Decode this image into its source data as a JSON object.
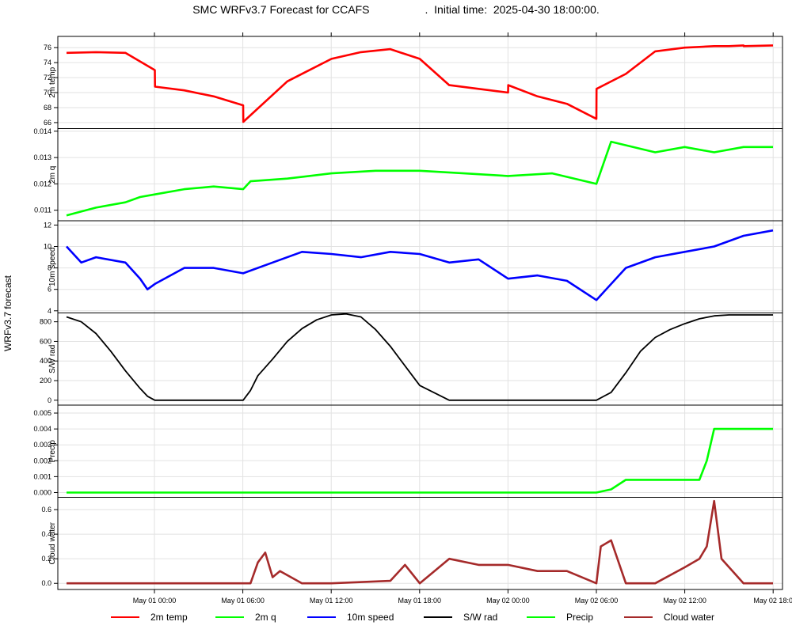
{
  "chart_data": {
    "type": "line",
    "title": "SMC WRFv3.7 Forecast for CCAFS                  .  Initial time:  2025-04-30 18:00:00.",
    "ylabel": "WRFv3.7 forecast",
    "x_range": [
      "2025-04-30 18:00",
      "2025-05-02 18:00"
    ],
    "x_tick_labels": [
      "May 01 00:00",
      "May 01 06:00",
      "May 01 12:00",
      "May 01 18:00",
      "May 02 00:00",
      "May 02 06:00",
      "May 02 12:00",
      "May 02 18:0"
    ],
    "grid": true,
    "legend_position": "bottom",
    "legend": [
      "2m temp",
      "2m q",
      "10m speed",
      "S/W rad",
      "Precip",
      "Cloud water"
    ],
    "panels": [
      {
        "name": "2m temp",
        "color": "#ff0000",
        "ylim": [
          65.2,
          77.5
        ],
        "y_ticks": [
          "66",
          "68",
          "70",
          "72",
          "74",
          "76"
        ],
        "x": [
          0,
          2,
          4,
          6,
          6.01,
          8,
          10,
          12,
          12.01,
          15,
          18,
          20,
          22,
          24,
          26,
          28,
          30,
          30.01,
          32,
          34,
          36,
          36.01,
          38,
          40,
          42,
          43,
          44,
          45,
          46,
          46.01,
          48
        ],
        "y": [
          75.3,
          75.4,
          75.3,
          73.0,
          70.8,
          70.3,
          69.5,
          68.3,
          66.1,
          71.5,
          74.5,
          75.4,
          75.8,
          74.5,
          71.0,
          70.5,
          70.0,
          71.0,
          69.5,
          68.5,
          66.5,
          70.5,
          72.5,
          75.5,
          76.0,
          76.1,
          76.2,
          76.2,
          76.3,
          76.2,
          76.3
        ]
      },
      {
        "name": "2m q",
        "color": "#00ff00",
        "ylim": [
          0.0106,
          0.0141
        ],
        "y_ticks": [
          "0.011",
          "0.012",
          "0.013",
          "0.014"
        ],
        "x": [
          0,
          2,
          4,
          5,
          6,
          8,
          10,
          12,
          12.5,
          15,
          18,
          21,
          24,
          27,
          30,
          33,
          36,
          37,
          40,
          42,
          44,
          46,
          48
        ],
        "y": [
          0.0108,
          0.0111,
          0.0113,
          0.0115,
          0.0116,
          0.0118,
          0.0119,
          0.0118,
          0.0121,
          0.0122,
          0.0124,
          0.0125,
          0.0125,
          0.0124,
          0.0123,
          0.0124,
          0.012,
          0.0136,
          0.0132,
          0.0134,
          0.0132,
          0.0134,
          0.0134
        ]
      },
      {
        "name": "10m speed",
        "color": "#0000ff",
        "ylim": [
          3.8,
          12.4
        ],
        "y_ticks": [
          "4",
          "6",
          "8",
          "10",
          "12"
        ],
        "x": [
          0,
          1,
          2,
          4,
          5,
          5.5,
          6,
          8,
          10,
          12,
          14,
          16,
          18,
          20,
          22,
          24,
          26,
          28,
          30,
          32,
          34,
          36,
          38,
          40,
          42,
          44,
          46,
          48
        ],
        "y": [
          10.0,
          8.5,
          9.0,
          8.5,
          7.0,
          6.0,
          6.5,
          8.0,
          8.0,
          7.5,
          8.5,
          9.5,
          9.3,
          9.0,
          9.5,
          9.3,
          8.5,
          8.8,
          7.0,
          7.3,
          6.8,
          5.0,
          8.0,
          9.0,
          9.5,
          10.0,
          11.0,
          11.5
        ]
      },
      {
        "name": "S/W rad",
        "color": "#000000",
        "ylim": [
          -50,
          890
        ],
        "y_ticks": [
          "0",
          "200",
          "400",
          "600",
          "800"
        ],
        "x": [
          0,
          1,
          2,
          3,
          4,
          5,
          5.5,
          6,
          12,
          12.5,
          13,
          14,
          15,
          16,
          17,
          18,
          19,
          20,
          21,
          22,
          23,
          24,
          26,
          30,
          36,
          37,
          38,
          39,
          40,
          41,
          42,
          43,
          44,
          45,
          46,
          47,
          48
        ],
        "y": [
          850,
          800,
          680,
          500,
          300,
          120,
          40,
          0,
          0,
          100,
          250,
          420,
          600,
          730,
          820,
          870,
          880,
          850,
          720,
          550,
          350,
          150,
          0,
          0,
          0,
          80,
          280,
          500,
          640,
          720,
          780,
          830,
          860,
          870,
          870,
          870,
          870
        ]
      },
      {
        "name": "Precip",
        "color": "#00ff00",
        "ylim": [
          -0.0003,
          0.0055
        ],
        "y_ticks": [
          "0.000",
          "0.001",
          "0.002",
          "0.003",
          "0.004",
          "0.005"
        ],
        "x": [
          0,
          10,
          20,
          30,
          36,
          37,
          38,
          40,
          42,
          43,
          43.5,
          44,
          44.5,
          45,
          46,
          48
        ],
        "y": [
          0,
          0,
          0,
          0,
          0,
          0.0002,
          0.0008,
          0.0008,
          0.0008,
          0.0008,
          0.002,
          0.004,
          0.004,
          0.004,
          0.004,
          0.004
        ]
      },
      {
        "name": "Cloud water",
        "color": "#a52a2a",
        "ylim": [
          -0.05,
          0.7
        ],
        "y_ticks": [
          "0.0",
          "0.2",
          "0.4",
          "0.6"
        ],
        "x": [
          0,
          10,
          12.5,
          13,
          13.5,
          14,
          14.5,
          16,
          18,
          22,
          23,
          24,
          26,
          28,
          30,
          32,
          34,
          36,
          36.3,
          37,
          38,
          40,
          42,
          43,
          43.5,
          44,
          44.5,
          46,
          48
        ],
        "y": [
          0,
          0,
          0,
          0.17,
          0.25,
          0.05,
          0.1,
          0,
          0,
          0.02,
          0.15,
          0,
          0.2,
          0.15,
          0.15,
          0.1,
          0.1,
          0,
          0.3,
          0.35,
          0,
          0,
          0.13,
          0.2,
          0.3,
          0.67,
          0.2,
          0,
          0
        ]
      }
    ]
  }
}
